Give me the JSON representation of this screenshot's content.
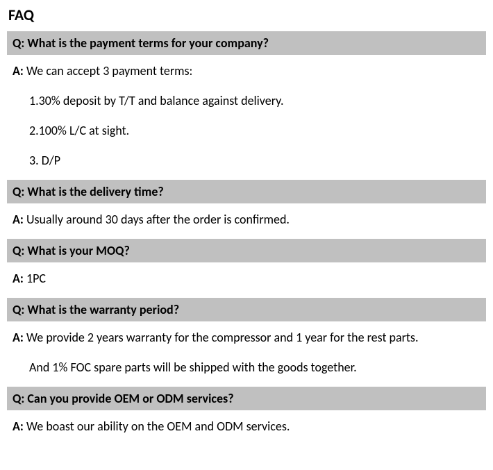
{
  "colors": {
    "background": "#ffffff",
    "question_bg": "#c0c0c0",
    "text": "#000000"
  },
  "typography": {
    "font_family": "Calibri, Arial, sans-serif",
    "title_fontsize": 22,
    "body_fontsize": 18,
    "title_weight": "bold",
    "question_weight": "bold"
  },
  "title": "FAQ",
  "labels": {
    "q": "Q:",
    "a": "A:"
  },
  "faq": [
    {
      "q": "What is the payment terms for your company?",
      "a_lead": "We can accept 3 payment terms:",
      "a_items": [
        "1.30% deposit by T/T and balance against delivery.",
        "2.100% L/C at sight.",
        "3. D/P"
      ]
    },
    {
      "q": "What is the delivery time?",
      "a_lead": "Usually around 30 days after the order is confirmed."
    },
    {
      "q": "What is your MOQ?",
      "a_lead": "1PC"
    },
    {
      "q": "What is the warranty period?",
      "a_lead": "We provide 2 years warranty for the compressor and 1 year for the rest parts.",
      "a_items": [
        "And 1% FOC spare parts will be shipped with the goods together."
      ]
    },
    {
      "q": "Can you provide OEM or ODM services?",
      "a_lead": "We boast our ability on the OEM and ODM services."
    }
  ]
}
